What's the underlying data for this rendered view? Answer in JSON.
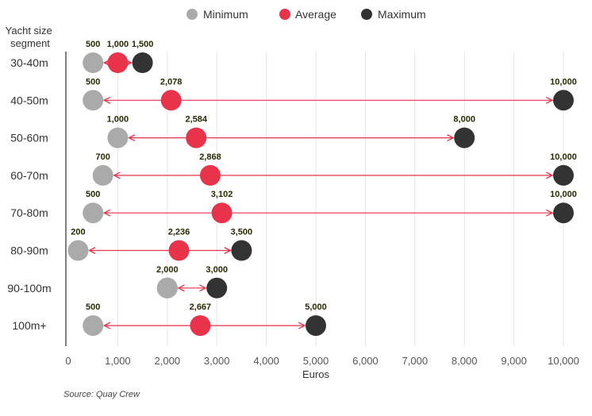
{
  "chart_data": {
    "type": "dumbbell",
    "ylabel": "Yacht size segment",
    "xlabel": "Euros",
    "source": "Source: Quay Crew",
    "xlim": [
      0,
      10000
    ],
    "xticks": [
      0,
      1000,
      2000,
      3000,
      4000,
      5000,
      6000,
      7000,
      8000,
      9000,
      10000
    ],
    "xtick_labels": [
      "0",
      "1,000",
      "2,000",
      "3,000",
      "4,000",
      "5,000",
      "6,000",
      "7,000",
      "8,000",
      "9,000",
      "10,000"
    ],
    "grid": "vertical",
    "legend_position": "top",
    "categories": [
      "30-40m",
      "40-50m",
      "50-60m",
      "60-70m",
      "70-80m",
      "80-90m",
      "90-100m",
      "100m+"
    ],
    "series": [
      {
        "name": "Minimum",
        "color": "#aaaaaa",
        "values": [
          500,
          500,
          1000,
          700,
          500,
          200,
          2000,
          500
        ],
        "labels": [
          "500",
          "500",
          "1,000",
          "700",
          "500",
          "200",
          "2,000",
          "500"
        ]
      },
      {
        "name": "Average",
        "color": "#e8334a",
        "values": [
          1000,
          2078,
          2584,
          2868,
          3102,
          2236,
          2000,
          2667
        ],
        "labels": [
          "1,000",
          "2,078",
          "2,584",
          "2,868",
          "3,102",
          "2,236",
          "",
          "2,667"
        ]
      },
      {
        "name": "Maximum",
        "color": "#333333",
        "values": [
          1500,
          10000,
          8000,
          10000,
          10000,
          3500,
          3000,
          5000
        ],
        "labels": [
          "1,500",
          "10,000",
          "8,000",
          "10,000",
          "10,000",
          "3,500",
          "3,000",
          "5,000"
        ]
      }
    ],
    "range_line_color": "#e8334a"
  }
}
